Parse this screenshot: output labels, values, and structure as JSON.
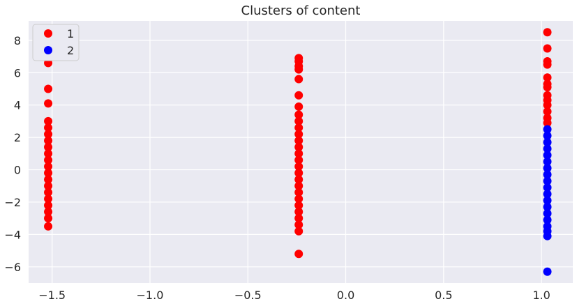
{
  "chart_data": {
    "type": "scatter",
    "title": "Clusters of content",
    "xlabel": "",
    "ylabel": "",
    "xlim": [
      -1.62,
      1.16
    ],
    "ylim": [
      -7.0,
      9.2
    ],
    "xticks": [
      -1.5,
      -1.0,
      -0.5,
      0.0,
      0.5,
      1.0
    ],
    "xtick_labels": [
      "−1.5",
      "−1.0",
      "−0.5",
      "0.0",
      "0.5",
      "1.0"
    ],
    "yticks": [
      -6,
      -4,
      -2,
      0,
      2,
      4,
      6,
      8
    ],
    "ytick_labels": [
      "−6",
      "−4",
      "−2",
      "0",
      "2",
      "4",
      "6",
      "8"
    ],
    "grid": true,
    "legend": "top-left",
    "series": [
      {
        "name": "1",
        "color": "#ff0000",
        "points": [
          {
            "x": -1.52,
            "y": 6.6
          },
          {
            "x": -1.52,
            "y": 5.0
          },
          {
            "x": -1.52,
            "y": 4.1
          },
          {
            "x": -1.52,
            "y": 3.0
          },
          {
            "x": -1.52,
            "y": 2.6
          },
          {
            "x": -1.52,
            "y": 2.2
          },
          {
            "x": -1.52,
            "y": 1.8
          },
          {
            "x": -1.52,
            "y": 1.4
          },
          {
            "x": -1.52,
            "y": 1.0
          },
          {
            "x": -1.52,
            "y": 0.6
          },
          {
            "x": -1.52,
            "y": 0.2
          },
          {
            "x": -1.52,
            "y": -0.2
          },
          {
            "x": -1.52,
            "y": -0.6
          },
          {
            "x": -1.52,
            "y": -1.0
          },
          {
            "x": -1.52,
            "y": -1.4
          },
          {
            "x": -1.52,
            "y": -1.8
          },
          {
            "x": -1.52,
            "y": -2.2
          },
          {
            "x": -1.52,
            "y": -2.6
          },
          {
            "x": -1.52,
            "y": -3.0
          },
          {
            "x": -1.52,
            "y": -3.5
          },
          {
            "x": -0.24,
            "y": 6.9
          },
          {
            "x": -0.24,
            "y": 6.7
          },
          {
            "x": -0.24,
            "y": 6.4
          },
          {
            "x": -0.24,
            "y": 6.2
          },
          {
            "x": -0.24,
            "y": 5.6
          },
          {
            "x": -0.24,
            "y": 4.6
          },
          {
            "x": -0.24,
            "y": 3.9
          },
          {
            "x": -0.24,
            "y": 3.4
          },
          {
            "x": -0.24,
            "y": 3.0
          },
          {
            "x": -0.24,
            "y": 2.6
          },
          {
            "x": -0.24,
            "y": 2.2
          },
          {
            "x": -0.24,
            "y": 1.8
          },
          {
            "x": -0.24,
            "y": 1.4
          },
          {
            "x": -0.24,
            "y": 1.0
          },
          {
            "x": -0.24,
            "y": 0.6
          },
          {
            "x": -0.24,
            "y": 0.2
          },
          {
            "x": -0.24,
            "y": -0.2
          },
          {
            "x": -0.24,
            "y": -0.6
          },
          {
            "x": -0.24,
            "y": -1.0
          },
          {
            "x": -0.24,
            "y": -1.4
          },
          {
            "x": -0.24,
            "y": -1.8
          },
          {
            "x": -0.24,
            "y": -2.2
          },
          {
            "x": -0.24,
            "y": -2.6
          },
          {
            "x": -0.24,
            "y": -3.0
          },
          {
            "x": -0.24,
            "y": -3.4
          },
          {
            "x": -0.24,
            "y": -3.8
          },
          {
            "x": -0.24,
            "y": -5.2
          },
          {
            "x": 1.03,
            "y": 8.5
          },
          {
            "x": 1.03,
            "y": 7.5
          },
          {
            "x": 1.03,
            "y": 6.7
          },
          {
            "x": 1.03,
            "y": 6.5
          },
          {
            "x": 1.03,
            "y": 5.7
          },
          {
            "x": 1.03,
            "y": 5.3
          },
          {
            "x": 1.03,
            "y": 5.1
          },
          {
            "x": 1.03,
            "y": 4.6
          },
          {
            "x": 1.03,
            "y": 4.3
          },
          {
            "x": 1.03,
            "y": 4.0
          },
          {
            "x": 1.03,
            "y": 3.6
          },
          {
            "x": 1.03,
            "y": 3.2
          },
          {
            "x": 1.03,
            "y": 2.9
          }
        ]
      },
      {
        "name": "2",
        "color": "#0000ff",
        "points": [
          {
            "x": 1.03,
            "y": 2.5
          },
          {
            "x": 1.03,
            "y": 2.1
          },
          {
            "x": 1.03,
            "y": 1.7
          },
          {
            "x": 1.03,
            "y": 1.3
          },
          {
            "x": 1.03,
            "y": 0.9
          },
          {
            "x": 1.03,
            "y": 0.5
          },
          {
            "x": 1.03,
            "y": 0.1
          },
          {
            "x": 1.03,
            "y": -0.3
          },
          {
            "x": 1.03,
            "y": -0.7
          },
          {
            "x": 1.03,
            "y": -1.1
          },
          {
            "x": 1.03,
            "y": -1.5
          },
          {
            "x": 1.03,
            "y": -1.9
          },
          {
            "x": 1.03,
            "y": -2.3
          },
          {
            "x": 1.03,
            "y": -2.7
          },
          {
            "x": 1.03,
            "y": -3.1
          },
          {
            "x": 1.03,
            "y": -3.5
          },
          {
            "x": 1.03,
            "y": -3.8
          },
          {
            "x": 1.03,
            "y": -4.1
          },
          {
            "x": 1.03,
            "y": -6.3
          }
        ]
      }
    ]
  }
}
